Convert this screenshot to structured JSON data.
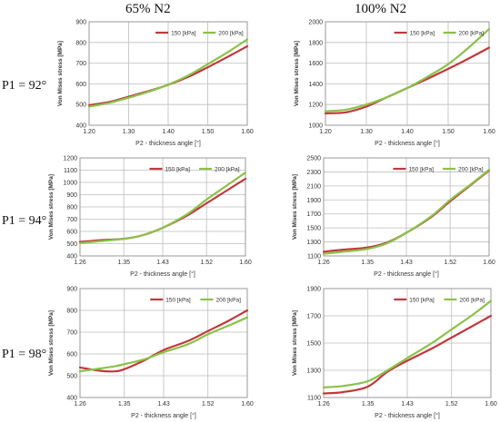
{
  "figure": {
    "col_titles": [
      "65% N2",
      "100% N2"
    ],
    "row_labels": [
      "P1 = 92°",
      "P1 = 94°",
      "P1 = 98°"
    ],
    "colors": {
      "s150": "#c0393b",
      "s200": "#8ac24a",
      "grid": "#bdbdbd",
      "axis": "#9a9a9a"
    }
  },
  "chart_data": [
    {
      "type": "line",
      "xlabel": "P2 - thickness angle [°]",
      "ylabel": "Von Mises stress [MPa]",
      "xticks": [
        "1.20",
        "1.30",
        "1.40",
        "1.50",
        "1.60"
      ],
      "xlim": [
        1.2,
        1.6
      ],
      "yticks": [
        "400",
        "500",
        "600",
        "700",
        "800",
        "900"
      ],
      "ylim": [
        400,
        900
      ],
      "legend": "top",
      "grid": true,
      "series": [
        {
          "name": "150 [kPa]",
          "x": [
            1.2,
            1.25,
            1.3,
            1.35,
            1.4,
            1.45,
            1.5,
            1.55,
            1.6
          ],
          "y": [
            497,
            512,
            538,
            565,
            595,
            633,
            680,
            730,
            782
          ]
        },
        {
          "name": "200 [kPa]",
          "x": [
            1.2,
            1.25,
            1.3,
            1.35,
            1.4,
            1.45,
            1.5,
            1.55,
            1.6
          ],
          "y": [
            490,
            508,
            533,
            562,
            596,
            640,
            695,
            752,
            815
          ]
        }
      ]
    },
    {
      "type": "line",
      "xlabel": "P2 - thickness angle [°]",
      "ylabel": "Von Mises stress [MPa]",
      "xticks": [
        "1.20",
        "1.30",
        "1.40",
        "1.50",
        "1.60"
      ],
      "xlim": [
        1.2,
        1.6
      ],
      "yticks": [
        "1000",
        "1200",
        "1400",
        "1600",
        "1800",
        "2000"
      ],
      "ylim": [
        1000,
        2000
      ],
      "legend": "top",
      "grid": true,
      "series": [
        {
          "name": "150 [kPa]",
          "x": [
            1.2,
            1.25,
            1.3,
            1.35,
            1.4,
            1.45,
            1.5,
            1.55,
            1.6
          ],
          "y": [
            1115,
            1125,
            1180,
            1270,
            1360,
            1450,
            1545,
            1645,
            1750
          ]
        },
        {
          "name": "200 [kPa]",
          "x": [
            1.2,
            1.25,
            1.3,
            1.35,
            1.4,
            1.45,
            1.5,
            1.55,
            1.6
          ],
          "y": [
            1135,
            1150,
            1200,
            1270,
            1360,
            1470,
            1590,
            1750,
            1930
          ]
        }
      ]
    },
    {
      "type": "line",
      "xlabel": "P2 - thickness angle [°]",
      "ylabel": "Von Mises stress [MPa]",
      "xticks": [
        "1.26",
        "1.35",
        "1.43",
        "1.52",
        "1.60"
      ],
      "xlim": [
        1.26,
        1.6
      ],
      "yticks": [
        "400",
        "500",
        "600",
        "700",
        "800",
        "900",
        "1000",
        "1100",
        "1200"
      ],
      "ylim": [
        400,
        1200
      ],
      "legend": "top",
      "grid": true,
      "series": [
        {
          "name": "150 [kPa]",
          "x": [
            1.26,
            1.3,
            1.35,
            1.39,
            1.43,
            1.48,
            1.52,
            1.56,
            1.6
          ],
          "y": [
            515,
            528,
            540,
            570,
            630,
            730,
            830,
            930,
            1030
          ]
        },
        {
          "name": "200 [kPa]",
          "x": [
            1.26,
            1.3,
            1.35,
            1.39,
            1.43,
            1.48,
            1.52,
            1.56,
            1.6
          ],
          "y": [
            505,
            520,
            540,
            570,
            630,
            740,
            860,
            970,
            1080
          ]
        }
      ]
    },
    {
      "type": "line",
      "xlabel": "P2 - thickness angle [°]",
      "ylabel": "Von Mises stress [MPa]",
      "xticks": [
        "1.26",
        "1.35",
        "1.43",
        "1.52",
        "1.60"
      ],
      "xlim": [
        1.26,
        1.6
      ],
      "yticks": [
        "1100",
        "1300",
        "1500",
        "1700",
        "1900",
        "2100",
        "2300",
        "2500"
      ],
      "ylim": [
        1100,
        2500
      ],
      "legend": "top",
      "grid": true,
      "series": [
        {
          "name": "150 [kPa]",
          "x": [
            1.26,
            1.3,
            1.35,
            1.39,
            1.43,
            1.48,
            1.52,
            1.56,
            1.6
          ],
          "y": [
            1160,
            1190,
            1220,
            1290,
            1430,
            1650,
            1880,
            2100,
            2320
          ]
        },
        {
          "name": "200 [kPa]",
          "x": [
            1.26,
            1.3,
            1.35,
            1.39,
            1.43,
            1.48,
            1.52,
            1.56,
            1.6
          ],
          "y": [
            1130,
            1160,
            1200,
            1280,
            1430,
            1660,
            1900,
            2110,
            2330
          ]
        }
      ]
    },
    {
      "type": "line",
      "xlabel": "P2 - thickness angle [°]",
      "ylabel": "Von Mises stress [MPa]",
      "xticks": [
        "1.26",
        "1.35",
        "1.43",
        "1.52",
        "1.60"
      ],
      "xlim": [
        1.26,
        1.6
      ],
      "yticks": [
        "400",
        "500",
        "600",
        "700",
        "800",
        "900"
      ],
      "ylim": [
        400,
        900
      ],
      "legend": "top",
      "grid": true,
      "series": [
        {
          "name": "150 [kPa]",
          "x": [
            1.26,
            1.3,
            1.33,
            1.35,
            1.39,
            1.43,
            1.48,
            1.52,
            1.56,
            1.6
          ],
          "y": [
            538,
            523,
            520,
            530,
            570,
            618,
            660,
            705,
            750,
            800
          ]
        },
        {
          "name": "200 [kPa]",
          "x": [
            1.26,
            1.3,
            1.33,
            1.35,
            1.39,
            1.43,
            1.48,
            1.52,
            1.56,
            1.6
          ],
          "y": [
            520,
            533,
            543,
            553,
            575,
            608,
            645,
            690,
            728,
            768
          ]
        }
      ]
    },
    {
      "type": "line",
      "xlabel": "P2 - thickness angle [°]",
      "ylabel": "Von Mises stress [MPa]",
      "xticks": [
        "1.26",
        "1.35",
        "1.43",
        "1.52",
        "1.60"
      ],
      "xlim": [
        1.26,
        1.6
      ],
      "yticks": [
        "1100",
        "1300",
        "1500",
        "1700",
        "1900"
      ],
      "ylim": [
        1100,
        1900
      ],
      "legend": "top",
      "grid": true,
      "series": [
        {
          "name": "150 [kPa]",
          "x": [
            1.26,
            1.3,
            1.35,
            1.39,
            1.43,
            1.48,
            1.52,
            1.56,
            1.6
          ],
          "y": [
            1130,
            1140,
            1180,
            1290,
            1370,
            1460,
            1540,
            1620,
            1700
          ]
        },
        {
          "name": "200 [kPa]",
          "x": [
            1.26,
            1.3,
            1.35,
            1.39,
            1.43,
            1.48,
            1.52,
            1.56,
            1.6
          ],
          "y": [
            1175,
            1185,
            1220,
            1300,
            1390,
            1500,
            1600,
            1700,
            1810
          ]
        }
      ]
    }
  ]
}
